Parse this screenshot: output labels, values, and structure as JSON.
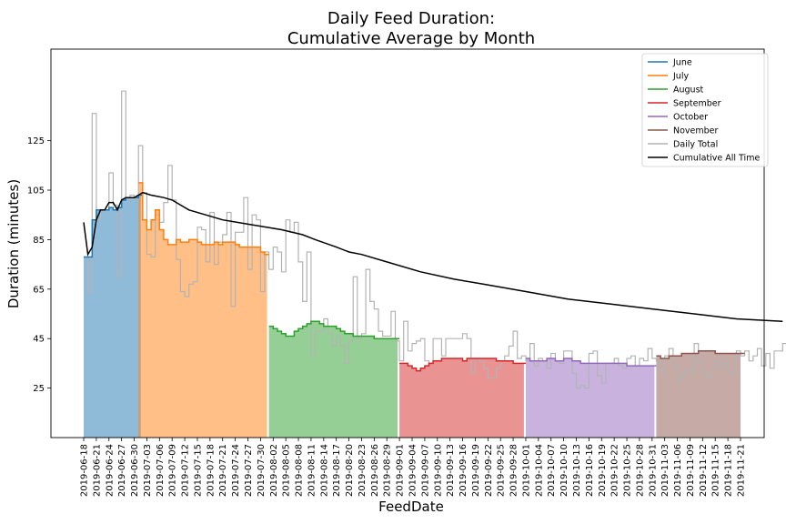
{
  "chart_data": {
    "type": "area",
    "title": "Daily Feed Duration:",
    "subtitle": "Cumulative Average by Month",
    "xlabel": "FeedDate",
    "ylabel": "Duration (minutes)",
    "x_start": "2019-06-18",
    "x_end": "2019-11-21",
    "y_ticks": [
      25,
      45,
      65,
      85,
      105,
      125
    ],
    "ylim": [
      5,
      162
    ],
    "x_tick_labels": [
      "2019-06-18",
      "2019-06-21",
      "2019-06-24",
      "2019-06-27",
      "2019-06-30",
      "2019-07-03",
      "2019-07-06",
      "2019-07-09",
      "2019-07-12",
      "2019-07-15",
      "2019-07-18",
      "2019-07-21",
      "2019-07-24",
      "2019-07-27",
      "2019-07-30",
      "2019-08-02",
      "2019-08-05",
      "2019-08-08",
      "2019-08-11",
      "2019-08-14",
      "2019-08-17",
      "2019-08-20",
      "2019-08-23",
      "2019-08-26",
      "2019-08-29",
      "2019-09-01",
      "2019-09-04",
      "2019-09-07",
      "2019-09-10",
      "2019-09-13",
      "2019-09-16",
      "2019-09-19",
      "2019-09-22",
      "2019-09-25",
      "2019-09-28",
      "2019-10-01",
      "2019-10-04",
      "2019-10-07",
      "2019-10-10",
      "2019-10-13",
      "2019-10-16",
      "2019-10-19",
      "2019-10-22",
      "2019-10-25",
      "2019-10-28",
      "2019-10-31",
      "2019-11-03",
      "2019-11-06",
      "2019-11-09",
      "2019-11-12",
      "2019-11-15",
      "2019-11-18",
      "2019-11-21"
    ],
    "legend_position": "top-right",
    "legend": [
      "June",
      "July",
      "August",
      "September",
      "October",
      "November",
      "Daily Total",
      "Cumulative All Time"
    ],
    "series": [
      {
        "name": "June",
        "color": "#1f77b4",
        "start": "2019-06-18",
        "values": [
          78,
          78,
          93,
          97,
          97,
          97,
          98,
          97,
          98,
          101,
          102,
          102,
          102,
          103
        ]
      },
      {
        "name": "July",
        "color": "#ff7f0e",
        "start": "2019-07-01",
        "values": [
          108,
          93,
          89,
          93,
          97,
          89,
          85,
          83,
          83,
          85,
          84,
          84,
          85,
          85,
          84,
          83,
          83,
          83,
          84,
          83,
          84,
          84,
          84,
          83,
          82,
          82,
          82,
          82,
          82,
          80,
          79
        ]
      },
      {
        "name": "August",
        "color": "#2ca02c",
        "start": "2019-08-01",
        "values": [
          50,
          49,
          48,
          47,
          46,
          46,
          48,
          49,
          50,
          51,
          52,
          52,
          51,
          50,
          50,
          50,
          49,
          48,
          47,
          47,
          46,
          46,
          46,
          46,
          46,
          45,
          45,
          45,
          45,
          45,
          45
        ]
      },
      {
        "name": "September",
        "color": "#d62728",
        "start": "2019-09-01",
        "values": [
          35,
          35,
          34,
          33,
          32,
          33,
          34,
          35,
          36,
          36,
          37,
          37,
          37,
          37,
          37,
          36,
          37,
          37,
          37,
          37,
          37,
          37,
          37,
          36,
          36,
          36,
          36,
          35,
          35,
          35
        ]
      },
      {
        "name": "October",
        "color": "#9467bd",
        "start": "2019-10-01",
        "values": [
          37,
          36,
          36,
          36,
          36,
          37,
          37,
          36,
          36,
          37,
          37,
          36,
          36,
          35,
          35,
          35,
          35,
          35,
          35,
          35,
          35,
          35,
          35,
          35,
          34,
          34,
          34,
          34,
          34,
          34,
          34
        ]
      },
      {
        "name": "November",
        "color": "#8c564b",
        "start": "2019-11-01",
        "values": [
          38,
          37,
          37,
          38,
          38,
          38,
          39,
          39,
          39,
          39,
          40,
          40,
          40,
          40,
          39,
          39,
          39,
          39,
          39,
          39,
          39
        ]
      }
    ],
    "daily_total": {
      "name": "Daily Total",
      "color": "#b3b3b3",
      "start": "2019-06-18",
      "values": [
        78,
        64,
        136,
        93,
        97,
        97,
        112,
        99,
        70,
        145,
        101,
        103,
        102,
        123,
        104,
        79,
        78,
        95,
        92,
        100,
        115,
        101,
        77,
        64,
        62,
        67,
        68,
        90,
        89,
        76,
        96,
        75,
        84,
        87,
        96,
        58,
        88,
        88,
        102,
        73,
        95,
        93,
        64,
        80,
        73,
        82,
        80,
        72,
        93,
        88,
        92,
        76,
        60,
        80,
        38,
        48,
        48,
        53,
        47,
        42,
        46,
        42,
        35,
        44,
        70,
        45,
        47,
        73,
        60,
        57,
        48,
        46,
        46,
        56,
        44,
        36,
        52,
        40,
        43,
        44,
        45,
        36,
        35,
        45,
        45,
        38,
        45,
        45,
        45,
        45,
        47,
        45,
        31,
        37,
        36,
        33,
        29,
        29,
        33,
        36,
        38,
        42,
        48,
        37,
        38,
        36,
        43,
        34,
        37,
        36,
        33,
        39,
        36,
        35,
        40,
        40,
        31,
        25,
        26,
        25,
        39,
        40,
        30,
        27,
        35,
        35,
        37,
        34,
        33,
        37,
        38,
        34,
        37,
        36,
        41,
        37,
        36,
        31,
        38,
        41,
        34,
        28,
        30,
        33,
        31,
        43,
        36,
        31,
        29,
        33,
        36,
        34,
        35,
        31,
        31,
        40,
        38,
        40,
        36,
        38,
        41,
        34,
        39,
        33,
        40,
        40,
        43,
        40,
        41,
        35,
        40,
        43,
        43,
        35,
        36,
        43,
        34,
        40,
        44,
        35
      ]
    },
    "cumulative": {
      "name": "Cumulative All Time",
      "color": "#000000",
      "start": "2019-06-18",
      "points": [
        [
          0,
          92
        ],
        [
          1,
          79
        ],
        [
          2,
          82
        ],
        [
          3,
          93
        ],
        [
          4,
          97
        ],
        [
          5,
          97
        ],
        [
          6,
          100
        ],
        [
          7,
          100
        ],
        [
          8,
          97
        ],
        [
          9,
          101
        ],
        [
          10,
          102
        ],
        [
          11,
          102
        ],
        [
          12,
          102
        ],
        [
          13,
          103
        ],
        [
          14,
          104
        ],
        [
          16,
          103
        ],
        [
          19,
          102
        ],
        [
          21,
          101
        ],
        [
          25,
          97
        ],
        [
          29,
          95
        ],
        [
          33,
          93
        ],
        [
          40,
          91
        ],
        [
          47,
          89
        ],
        [
          52,
          87
        ],
        [
          55,
          85
        ],
        [
          60,
          82
        ],
        [
          63,
          80
        ],
        [
          66,
          79
        ],
        [
          72,
          76
        ],
        [
          80,
          72
        ],
        [
          88,
          69
        ],
        [
          95,
          67
        ],
        [
          105,
          64
        ],
        [
          115,
          61
        ],
        [
          125,
          59
        ],
        [
          135,
          57
        ],
        [
          145,
          55
        ],
        [
          155,
          53
        ],
        [
          166,
          52
        ]
      ]
    }
  }
}
